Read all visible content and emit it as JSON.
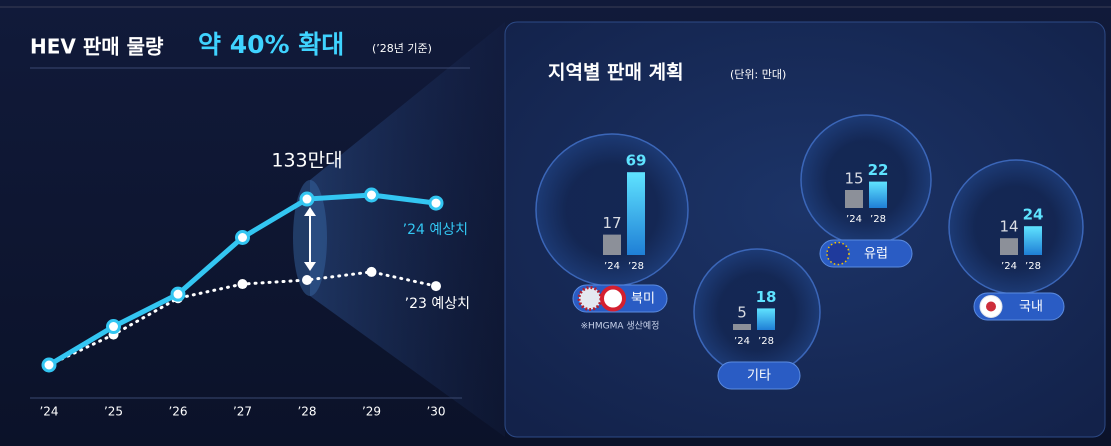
{
  "chart_data": [
    {
      "type": "line",
      "title": "HEV 판매 물량",
      "title_highlight": "약 40% 확대",
      "title_note": "(’28년 기준)",
      "annotation": "133만대",
      "categories": [
        "’24",
        "’25",
        "’26",
        "’27",
        "’28",
        "’29",
        "’30"
      ],
      "series": [
        {
          "name": "’24 예상치",
          "color": "#33c6f2",
          "values": [
            51,
            70,
            86,
            114,
            133,
            135,
            131
          ]
        },
        {
          "name": "’23 예상치",
          "color": "#ffffff",
          "values": [
            51,
            66,
            84,
            91,
            93,
            97,
            90
          ]
        }
      ]
    },
    {
      "type": "bar",
      "title": "지역별 판매 계획",
      "unit": "(단위: 만대)",
      "categories": [
        "’24",
        "’28"
      ],
      "colors": [
        "#8c9099",
        "#34c8f2"
      ],
      "series": [
        {
          "name": "북미",
          "values": [
            17,
            69
          ],
          "note": "※HMGMA 생산예정"
        },
        {
          "name": "유럽",
          "values": [
            15,
            22
          ]
        },
        {
          "name": "국내",
          "values": [
            14,
            24
          ]
        },
        {
          "name": "기타",
          "values": [
            5,
            18
          ]
        }
      ]
    }
  ]
}
